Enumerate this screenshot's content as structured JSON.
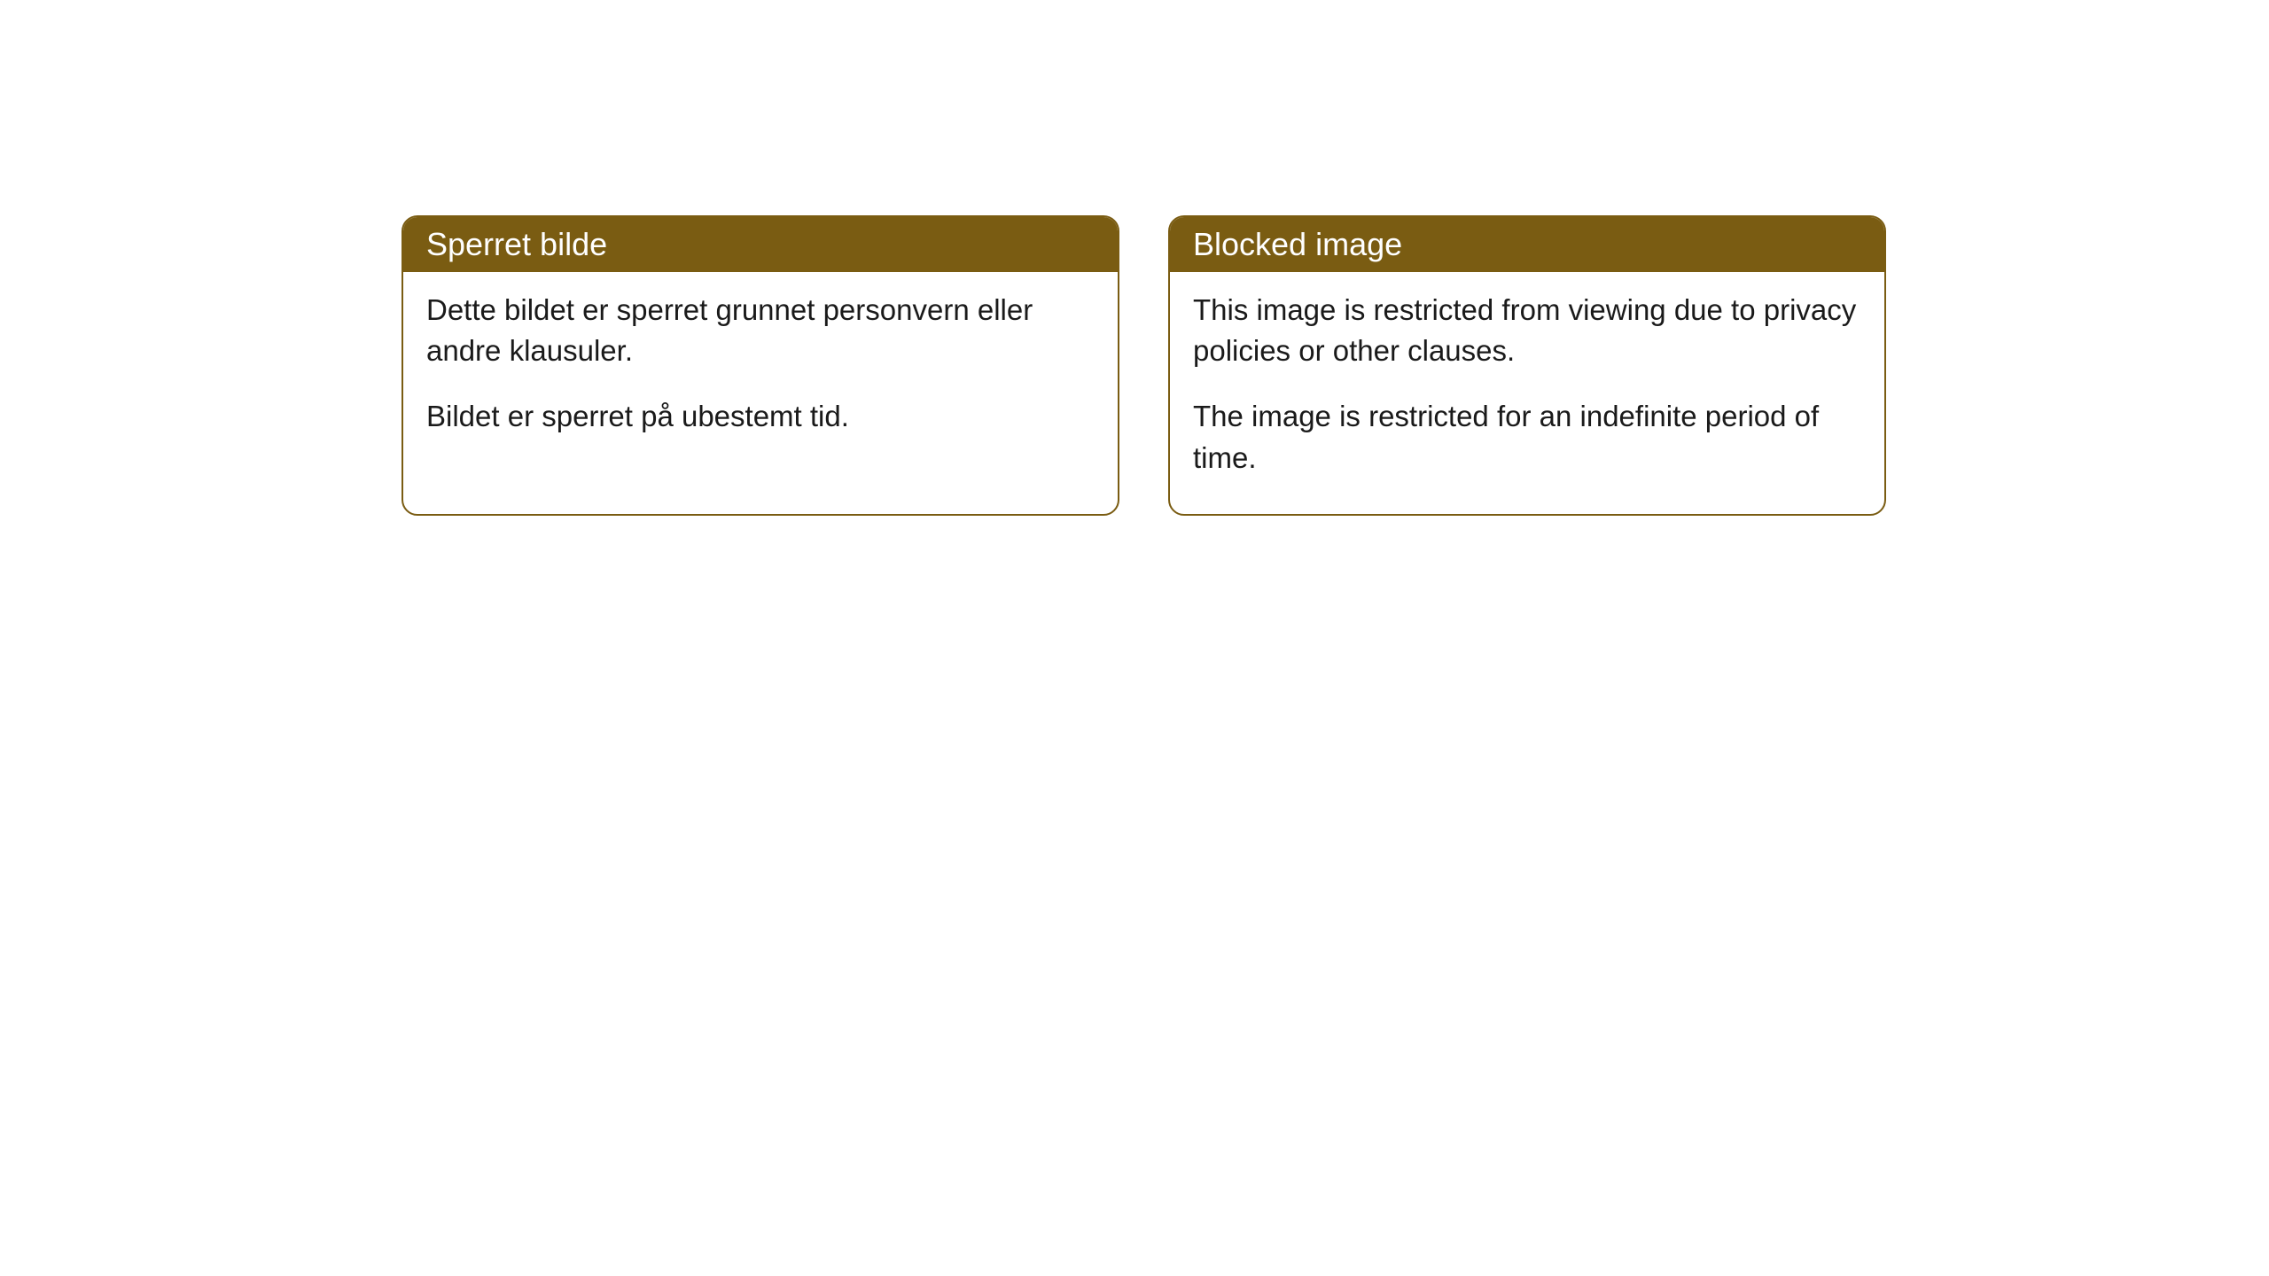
{
  "cards": [
    {
      "title": "Sperret bilde",
      "paragraph1": "Dette bildet er sperret grunnet personvern eller andre klausuler.",
      "paragraph2": "Bildet er sperret på ubestemt tid."
    },
    {
      "title": "Blocked image",
      "paragraph1": "This image is restricted from viewing due to privacy policies or other clauses.",
      "paragraph2": "The image is restricted for an indefinite period of time."
    }
  ],
  "style": {
    "header_background": "#7a5c12",
    "header_text_color": "#ffffff",
    "border_color": "#7a5c12",
    "body_text_color": "#1a1a1a",
    "card_background": "#ffffff",
    "border_radius": 18,
    "title_fontsize": 36,
    "body_fontsize": 33
  }
}
